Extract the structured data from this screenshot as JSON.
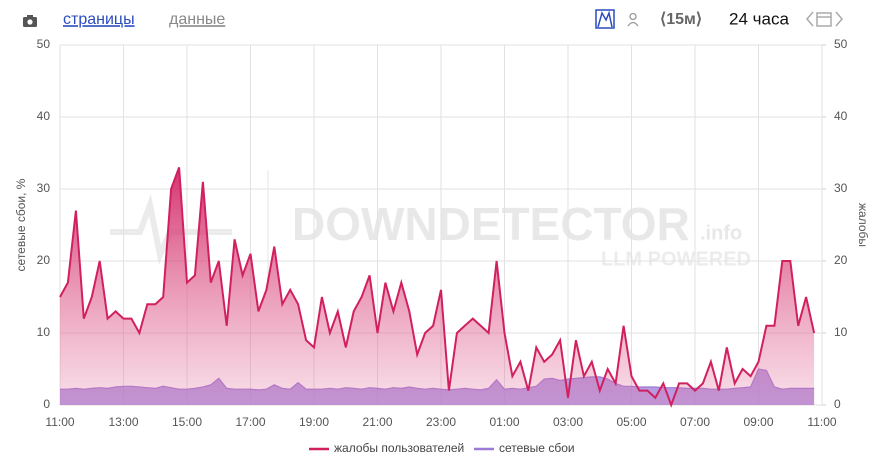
{
  "toolbar": {
    "tabs": [
      "страницы",
      "данные"
    ],
    "interval": "⟨15м⟩",
    "range": "24 часа"
  },
  "chart_data": {
    "type": "area",
    "ylabel": "сетевые сбои, %",
    "y2label": "жалобы",
    "watermark": {
      "brand": "DOWNDETECTOR",
      "suffix": ".info",
      "tagline": "LLM POWERED"
    },
    "xlim": [
      0,
      24
    ],
    "xticks": [
      {
        "value": 0,
        "label": "11:00"
      },
      {
        "value": 2,
        "label": "13:00"
      },
      {
        "value": 4,
        "label": "15:00"
      },
      {
        "value": 6,
        "label": "17:00"
      },
      {
        "value": 8,
        "label": "19:00"
      },
      {
        "value": 10,
        "label": "21:00"
      },
      {
        "value": 12,
        "label": "23:00"
      },
      {
        "value": 14,
        "label": "01:00"
      },
      {
        "value": 16,
        "label": "03:00"
      },
      {
        "value": 18,
        "label": "05:00"
      },
      {
        "value": 20,
        "label": "07:00"
      },
      {
        "value": 22,
        "label": "09:00"
      },
      {
        "value": 24,
        "label": "11:00"
      }
    ],
    "ylim": [
      0,
      50
    ],
    "yticks": [
      0,
      10,
      20,
      30,
      40,
      50
    ],
    "y2lim": [
      0,
      50
    ],
    "y2ticks": [
      0,
      10,
      20,
      30,
      40,
      50
    ],
    "grid": true,
    "x": [
      0,
      0.25,
      0.5,
      0.75,
      1,
      1.25,
      1.5,
      1.75,
      2,
      2.25,
      2.5,
      2.75,
      3,
      3.25,
      3.5,
      3.75,
      4,
      4.25,
      4.5,
      4.75,
      5,
      5.25,
      5.5,
      5.75,
      6,
      6.25,
      6.5,
      6.75,
      7,
      7.25,
      7.5,
      7.75,
      8,
      8.25,
      8.5,
      8.75,
      9,
      9.25,
      9.5,
      9.75,
      10,
      10.25,
      10.5,
      10.75,
      11,
      11.25,
      11.5,
      11.75,
      12,
      12.25,
      12.5,
      12.75,
      13,
      13.25,
      13.5,
      13.75,
      14,
      14.25,
      14.5,
      14.75,
      15,
      15.25,
      15.5,
      15.75,
      16,
      16.25,
      16.5,
      16.75,
      17,
      17.25,
      17.5,
      17.75,
      18,
      18.25,
      18.5,
      18.75,
      19,
      19.25,
      19.5,
      19.75,
      20,
      20.25,
      20.5,
      20.75,
      21,
      21.25,
      21.5,
      21.75,
      22,
      22.25,
      22.5,
      22.75,
      23,
      23.25,
      23.5,
      23.75
    ],
    "series": [
      {
        "name": "жалобы пользователей",
        "color": "#d1205f",
        "axis": "y2",
        "values": [
          15,
          17,
          27,
          12,
          15,
          20,
          12,
          13,
          12,
          12,
          10,
          14,
          14,
          15,
          30,
          33,
          17,
          18,
          31,
          17,
          20,
          11,
          23,
          18,
          21,
          13,
          16,
          22,
          14,
          16,
          14,
          9,
          8,
          15,
          10,
          13,
          8,
          13,
          15,
          18,
          10,
          17,
          13,
          17,
          13,
          7,
          10,
          11,
          16,
          2,
          10,
          11,
          12,
          11,
          10,
          20,
          10,
          4,
          6,
          2,
          8,
          6,
          7,
          9,
          1,
          9,
          4,
          6,
          2,
          5,
          3,
          11,
          4,
          2,
          2,
          1,
          3,
          0,
          3,
          3,
          2,
          3,
          6,
          2,
          8,
          3,
          5,
          4,
          6,
          11,
          11,
          20,
          20,
          11,
          15,
          10
        ]
      },
      {
        "name": "сетевые сбои",
        "color": "#9d7ad8",
        "values": [
          2.2,
          2.2,
          2.3,
          2.2,
          2.3,
          2.4,
          2.3,
          2.5,
          2.6,
          2.6,
          2.5,
          2.4,
          2.3,
          2.6,
          2.4,
          2.2,
          2.2,
          2.3,
          2.5,
          2.8,
          3.7,
          2.3,
          2.2,
          2.2,
          2.2,
          2.1,
          2.2,
          2.8,
          2.3,
          2.2,
          3.1,
          2.2,
          2.2,
          2.2,
          2.3,
          2.2,
          2.4,
          2.3,
          2.2,
          2.4,
          2.3,
          2.2,
          2.4,
          2.3,
          2.5,
          2.3,
          2.2,
          2.3,
          2.2,
          2.1,
          2.2,
          2.3,
          2.2,
          2.1,
          2.3,
          3.5,
          2.2,
          2.3,
          2.2,
          2.4,
          2.6,
          3.6,
          3.7,
          3.4,
          3.6,
          3.7,
          3.8,
          3.9,
          3.9,
          3.6,
          3.0,
          2.6,
          2.6,
          2.5,
          2.5,
          2.5,
          2.4,
          2.4,
          2.4,
          2.3,
          2.3,
          2.3,
          2.2,
          2.2,
          2.2,
          2.3,
          2.4,
          2.5,
          5.0,
          4.8,
          2.5,
          2.2,
          2.3,
          2.3,
          2.3,
          2.3
        ]
      }
    ]
  }
}
